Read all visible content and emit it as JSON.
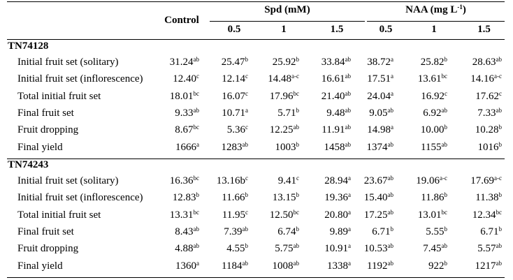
{
  "header": {
    "control": "Control",
    "spd": "Spd (mM)",
    "naa_main": "NAA (mg L",
    "naa_sup": "-1",
    "naa_close": ")",
    "sub": [
      "0.5",
      "1",
      "1.5",
      "0.5",
      "1",
      "1.5"
    ]
  },
  "sections": [
    {
      "title": "TN74128",
      "rows": [
        {
          "label": "Initial fruit set (solitary)",
          "cells": [
            {
              "v": "31.24",
              "s": "ab"
            },
            {
              "v": "25.47",
              "s": "b"
            },
            {
              "v": "25.92",
              "s": "b"
            },
            {
              "v": "33.84",
              "s": "ab"
            },
            {
              "v": "38.72",
              "s": "a"
            },
            {
              "v": "25.82",
              "s": "b"
            },
            {
              "v": "28.63",
              "s": "ab"
            }
          ]
        },
        {
          "label": "Initial fruit set (inflorescence)",
          "cells": [
            {
              "v": "12.40",
              "s": "c"
            },
            {
              "v": "12.14",
              "s": "c"
            },
            {
              "v": "14.48",
              "s": "a-c"
            },
            {
              "v": "16.61",
              "s": "ab"
            },
            {
              "v": "17.51",
              "s": "a"
            },
            {
              "v": "13.61",
              "s": "bc"
            },
            {
              "v": "14.16",
              "s": "a-c"
            }
          ]
        },
        {
          "label": "Total initial fruit set",
          "cells": [
            {
              "v": "18.01",
              "s": "bc"
            },
            {
              "v": "16.07",
              "s": "c"
            },
            {
              "v": "17.96",
              "s": "bc"
            },
            {
              "v": "21.40",
              "s": "ab"
            },
            {
              "v": "24.04",
              "s": "a"
            },
            {
              "v": "16.92",
              "s": "c"
            },
            {
              "v": "17.62",
              "s": "c"
            }
          ]
        },
        {
          "label": "Final fruit set",
          "cells": [
            {
              "v": "9.33",
              "s": "ab"
            },
            {
              "v": "10.71",
              "s": "a"
            },
            {
              "v": "5.71",
              "s": "b"
            },
            {
              "v": "9.48",
              "s": "ab"
            },
            {
              "v": "9.05",
              "s": "ab"
            },
            {
              "v": "6.92",
              "s": "ab"
            },
            {
              "v": "7.33",
              "s": "ab"
            }
          ]
        },
        {
          "label": "Fruit dropping",
          "cells": [
            {
              "v": "8.67",
              "s": "bc"
            },
            {
              "v": "5.36",
              "s": "c"
            },
            {
              "v": "12.25",
              "s": "ab"
            },
            {
              "v": "11.91",
              "s": "ab"
            },
            {
              "v": "14.98",
              "s": "a"
            },
            {
              "v": "10.00",
              "s": "b"
            },
            {
              "v": "10.28",
              "s": "b"
            }
          ]
        },
        {
          "label": "Final yield",
          "cells": [
            {
              "v": "1666",
              "s": "a"
            },
            {
              "v": "1283",
              "s": "ab"
            },
            {
              "v": "1003",
              "s": "b"
            },
            {
              "v": "1458",
              "s": "ab"
            },
            {
              "v": "1374",
              "s": "ab"
            },
            {
              "v": "1155",
              "s": "ab"
            },
            {
              "v": "1016",
              "s": "b"
            }
          ]
        }
      ]
    },
    {
      "title": "TN74243",
      "rows": [
        {
          "label": "Initial fruit set (solitary)",
          "cells": [
            {
              "v": "16.36",
              "s": "bc"
            },
            {
              "v": "13.16b",
              "s": "c"
            },
            {
              "v": "9.41",
              "s": "c"
            },
            {
              "v": "28.94",
              "s": "a"
            },
            {
              "v": "23.67",
              "s": "ab"
            },
            {
              "v": "19.06",
              "s": "a-c"
            },
            {
              "v": "17.69",
              "s": "a-c"
            }
          ]
        },
        {
          "label": "Initial fruit set (inflorescence)",
          "cells": [
            {
              "v": "12.83",
              "s": "b"
            },
            {
              "v": "11.66",
              "s": "b"
            },
            {
              "v": "13.15",
              "s": "b"
            },
            {
              "v": "19.36",
              "s": "a"
            },
            {
              "v": "15.40",
              "s": "ab"
            },
            {
              "v": "11.86",
              "s": "b"
            },
            {
              "v": "11.38",
              "s": "b"
            }
          ]
        },
        {
          "label": "Total initial fruit set",
          "cells": [
            {
              "v": "13.31",
              "s": "bc"
            },
            {
              "v": "11.95",
              "s": "c"
            },
            {
              "v": "12.50",
              "s": "bc"
            },
            {
              "v": "20.80",
              "s": "a"
            },
            {
              "v": "17.25",
              "s": "ab"
            },
            {
              "v": "13.01",
              "s": "bc"
            },
            {
              "v": "12.34",
              "s": "bc"
            }
          ]
        },
        {
          "label": "Final fruit set",
          "cells": [
            {
              "v": "8.43",
              "s": "ab"
            },
            {
              "v": "7.39",
              "s": "ab"
            },
            {
              "v": "6.74",
              "s": "b"
            },
            {
              "v": "9.89",
              "s": "a"
            },
            {
              "v": "6.71",
              "s": "b"
            },
            {
              "v": "5.55",
              "s": "b"
            },
            {
              "v": "6.71",
              "s": "b"
            }
          ]
        },
        {
          "label": "Fruit dropping",
          "cells": [
            {
              "v": "4.88",
              "s": "ab"
            },
            {
              "v": "4.55",
              "s": "b"
            },
            {
              "v": "5.75",
              "s": "ab"
            },
            {
              "v": "10.91",
              "s": "a"
            },
            {
              "v": "10.53",
              "s": "ab"
            },
            {
              "v": "7.45",
              "s": "ab"
            },
            {
              "v": "5.57",
              "s": "ab"
            }
          ]
        },
        {
          "label": "Final yield",
          "cells": [
            {
              "v": "1360",
              "s": "a"
            },
            {
              "v": "1184",
              "s": "ab"
            },
            {
              "v": "1008",
              "s": "ab"
            },
            {
              "v": "1338",
              "s": "a"
            },
            {
              "v": "1192",
              "s": "ab"
            },
            {
              "v": "922",
              "s": "b"
            },
            {
              "v": "1217",
              "s": "ab"
            }
          ]
        }
      ]
    }
  ]
}
